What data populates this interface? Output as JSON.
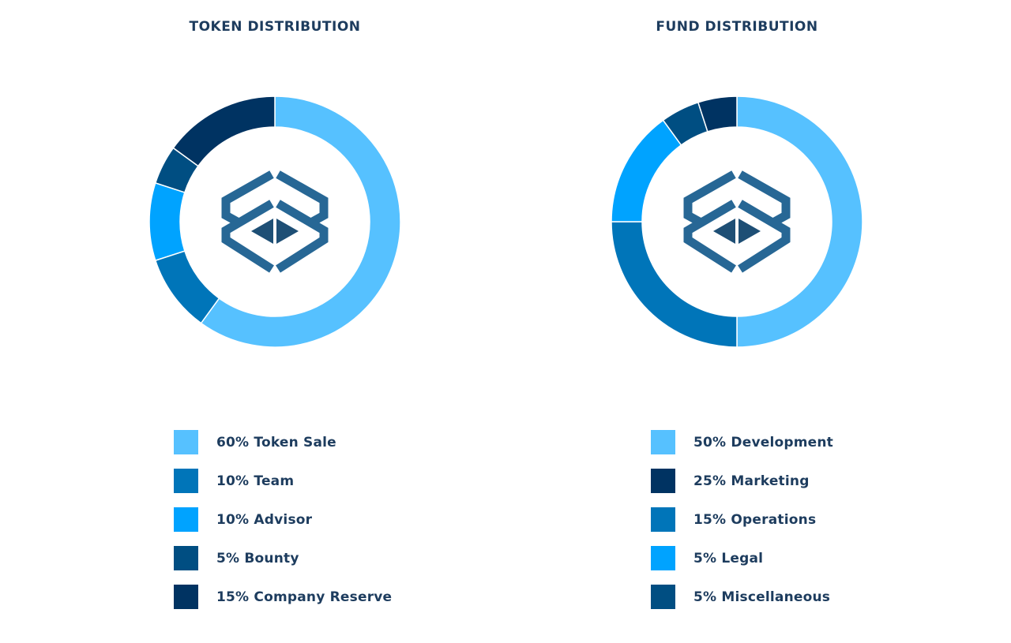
{
  "chart_data": [
    {
      "type": "pie",
      "variant": "donut",
      "title": "TOKEN DISTRIBUTION",
      "slices": [
        {
          "label": "60% Token Sale",
          "name": "Token Sale",
          "value": 60,
          "color": "#56c1ff",
          "legend_color": "#56c1ff"
        },
        {
          "label": "10% Team",
          "name": "Team",
          "value": 10,
          "color": "#0075b9",
          "legend_color": "#0075b9"
        },
        {
          "label": "10% Advisor",
          "name": "Advisor",
          "value": 10,
          "color": "#00a3ff",
          "legend_color": "#00a3ff"
        },
        {
          "label": "5% Bounty",
          "name": "Bounty",
          "value": 5,
          "color": "#004e82",
          "legend_color": "#004e82"
        },
        {
          "label": "15% Company Reserve",
          "name": "Company Reserve",
          "value": 15,
          "color": "#003362",
          "legend_color": "#003362"
        }
      ],
      "legend_placement": "bottom"
    },
    {
      "type": "pie",
      "variant": "donut",
      "title": "FUND DISTRIBUTION",
      "slices": [
        {
          "label": "50% Development",
          "name": "Development",
          "value": 50,
          "color": "#56c1ff",
          "legend_color": "#56c1ff"
        },
        {
          "label": "25% Marketing",
          "name": "Marketing",
          "value": 25,
          "color": "#0075b9",
          "legend_color": "#003362"
        },
        {
          "label": "15% Operations",
          "name": "Operations",
          "value": 15,
          "color": "#00a3ff",
          "legend_color": "#0075b9"
        },
        {
          "label": "5% Legal",
          "name": "Legal",
          "value": 5,
          "color": "#004e82",
          "legend_color": "#00a3ff"
        },
        {
          "label": "5% Miscellaneous",
          "name": "Miscellaneous",
          "value": 5,
          "color": "#003362",
          "legend_color": "#004e82"
        }
      ],
      "legend_placement": "bottom"
    }
  ],
  "center_logo": "cube-logo-icon"
}
